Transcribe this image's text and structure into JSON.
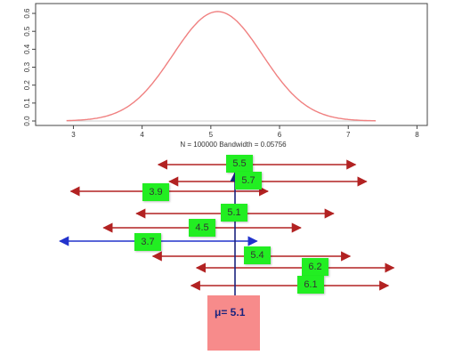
{
  "density_plot": {
    "x_ticks": [
      "3",
      "4",
      "5",
      "6",
      "7",
      "8"
    ],
    "y_ticks": [
      "0.0",
      "0.1",
      "0.2",
      "0.3",
      "0.4",
      "0.5",
      "0.6"
    ],
    "caption": "N = 100000   Bandwidth = 0.05756",
    "curve_mean": 5.1,
    "curve_sd": 0.65,
    "xlim": [
      2.45,
      8.15
    ],
    "ylim": [
      0,
      0.63
    ],
    "colors": {
      "curve": "#f08080",
      "frame": "#444444"
    }
  },
  "intervals": [
    {
      "label": "5.5",
      "center": 5.5,
      "lower": 3.7,
      "upper": 7.3
    },
    {
      "label": "5.7",
      "center": 5.7,
      "lower": 3.9,
      "upper": 7.5
    },
    {
      "label": "3.9",
      "center": 3.9,
      "lower": 2.1,
      "upper": 5.7
    },
    {
      "label": "5.1",
      "center": 5.1,
      "lower": 3.3,
      "upper": 6.9
    },
    {
      "label": "4.5",
      "center": 4.5,
      "lower": 2.7,
      "upper": 6.3
    },
    {
      "label": "3.7",
      "center": 3.7,
      "lower": 1.9,
      "upper": 5.5,
      "misses_mean": true
    },
    {
      "label": "5.4",
      "center": 5.4,
      "lower": 3.6,
      "upper": 7.2
    },
    {
      "label": "6.2",
      "center": 6.2,
      "lower": 4.4,
      "upper": 8.0
    },
    {
      "label": "6.1",
      "center": 6.1,
      "lower": 4.3,
      "upper": 7.9
    }
  ],
  "interval_colors": {
    "covers": "#b22222",
    "misses": "#2233cc"
  },
  "mean_line": {
    "value": 5.1,
    "color": "#1a237e"
  },
  "mean_box": {
    "symbol": "μ",
    "text": "= 5.1",
    "color": "#f78b8b"
  }
}
